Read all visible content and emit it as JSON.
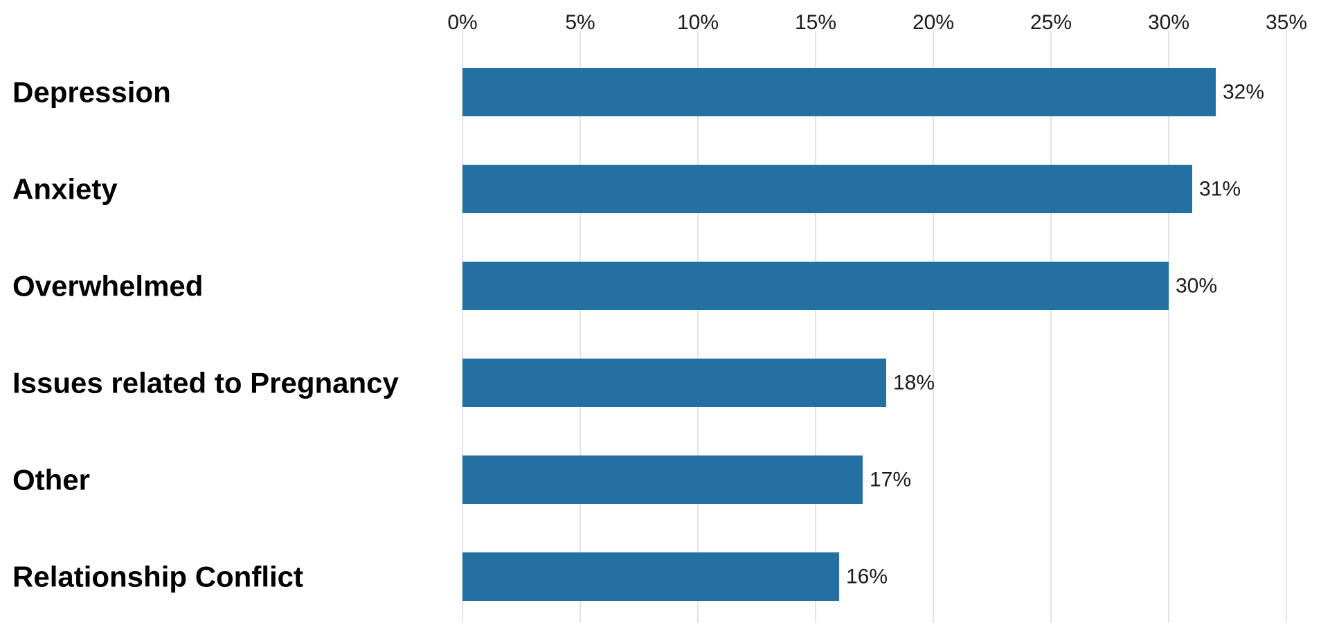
{
  "chart_data": {
    "type": "bar",
    "orientation": "horizontal",
    "categories": [
      "Depression",
      "Anxiety",
      "Overwhelmed",
      "Issues related to Pregnancy",
      "Other",
      "Relationship Conflict"
    ],
    "values": [
      32,
      31,
      30,
      18,
      17,
      16
    ],
    "value_labels": [
      "32%",
      "31%",
      "30%",
      "18%",
      "17%",
      "16%"
    ],
    "x_ticks": [
      0,
      5,
      10,
      15,
      20,
      25,
      30,
      35
    ],
    "x_tick_labels": [
      "0%",
      "5%",
      "10%",
      "15%",
      "20%",
      "25%",
      "30%",
      "35%"
    ],
    "xlim": [
      0,
      35
    ],
    "x_axis_position": "top",
    "grid": true,
    "title": "",
    "xlabel": "",
    "ylabel": "",
    "bar_color": "#2470a3",
    "grid_color": "#e3e3e3"
  }
}
